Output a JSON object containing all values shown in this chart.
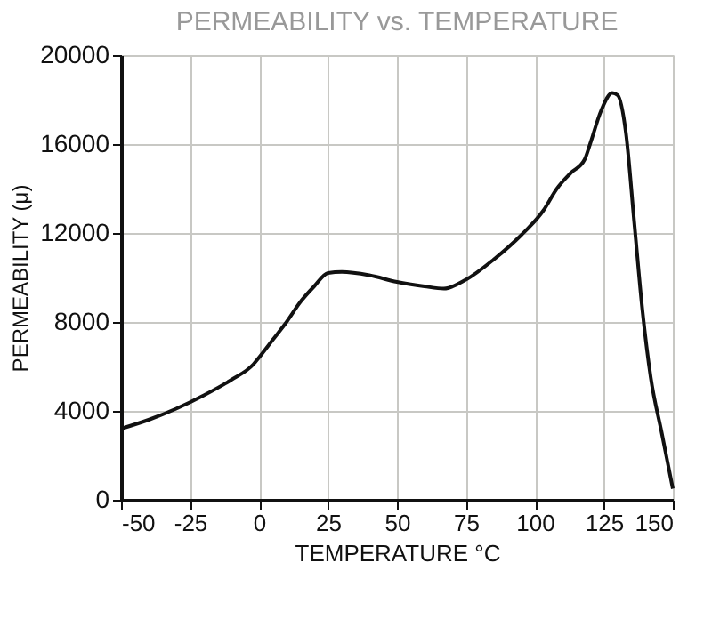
{
  "chart_data": {
    "type": "line",
    "title": "PERMEABILITY vs. TEMPERATURE",
    "xlabel": "TEMPERATURE °C",
    "ylabel": "PERMEABILITY (μ)",
    "x": [
      -50,
      -40,
      -30,
      -20,
      -10,
      -2,
      0,
      5,
      10,
      15,
      20,
      25,
      30,
      40,
      50,
      60,
      67,
      75,
      85,
      95,
      103,
      108,
      113,
      118,
      120,
      124,
      128,
      130,
      133,
      136,
      139,
      142,
      146,
      150
    ],
    "series": [
      {
        "color": "#111111",
        "values": [
          3200,
          3600,
          4100,
          4700,
          5400,
          6100,
          6400,
          7200,
          8000,
          8900,
          9600,
          10200,
          10250,
          10100,
          9800,
          9600,
          9500,
          9900,
          10800,
          11900,
          13000,
          14000,
          14700,
          15300,
          16000,
          17500,
          18300,
          18200,
          16500,
          12500,
          8500,
          5500,
          3000,
          500
        ]
      }
    ],
    "xlim": [
      -50,
      150
    ],
    "xticks": [
      -50,
      -25,
      0,
      25,
      50,
      75,
      100,
      125,
      150
    ],
    "ylim": [
      0,
      20000
    ],
    "yticks": [
      0,
      4000,
      8000,
      12000,
      16000,
      20000
    ],
    "grid": true,
    "marker": "none",
    "line_style": "solid"
  }
}
